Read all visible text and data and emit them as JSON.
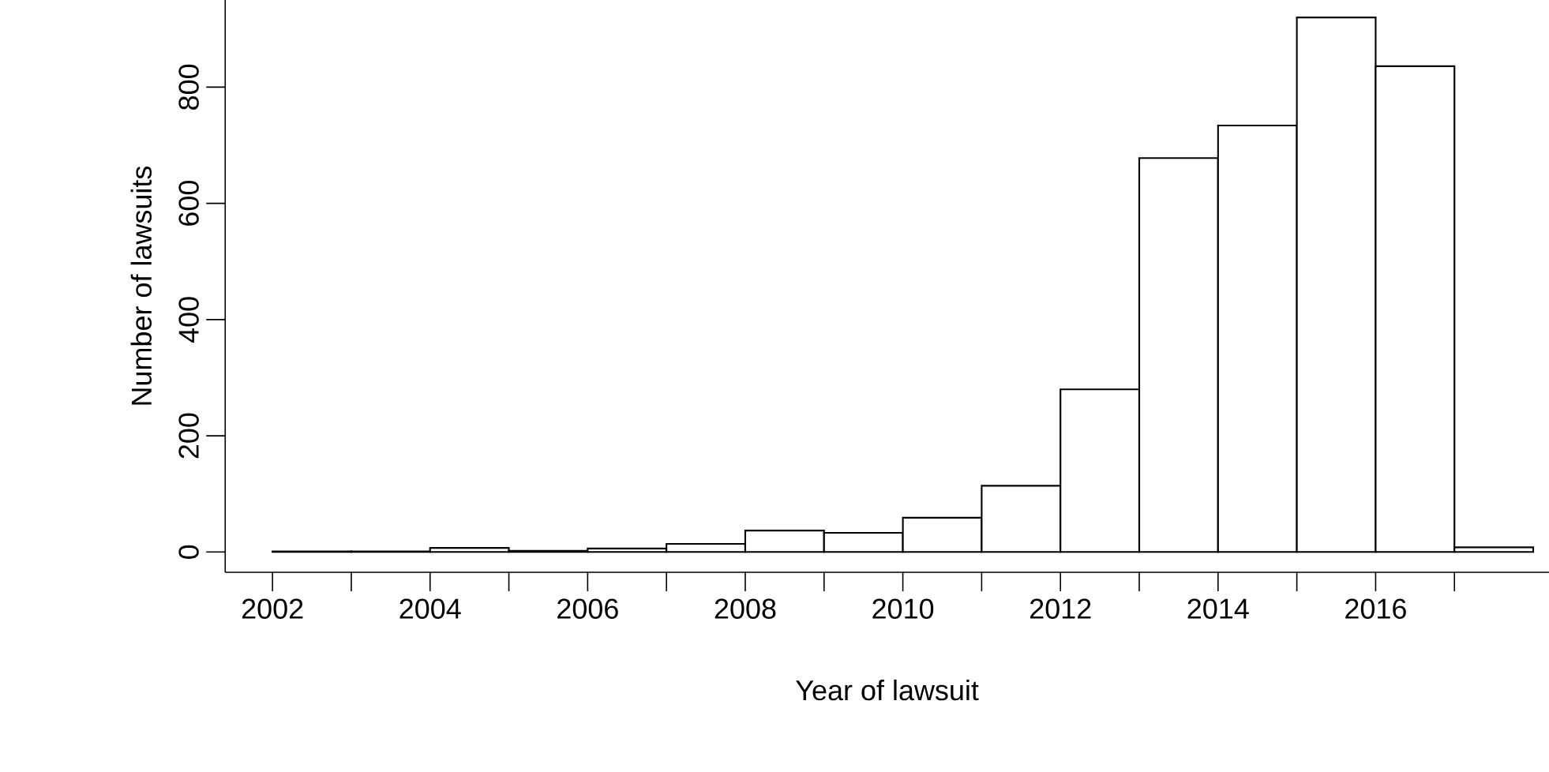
{
  "chart_data": {
    "type": "histogram",
    "xlabel": "Year of lawsuit",
    "ylabel": "Number of lawsuits",
    "bins": [
      2002,
      2003,
      2004,
      2005,
      2006,
      2007,
      2008,
      2009,
      2010,
      2011,
      2012,
      2013,
      2014,
      2015,
      2016,
      2017,
      2018
    ],
    "values": [
      1,
      1,
      7,
      2,
      6,
      14,
      37,
      33,
      59,
      114,
      280,
      678,
      734,
      920,
      836,
      8
    ],
    "color": "#ffffff",
    "xlim": [
      2001.4,
      2018.2
    ],
    "ylim": [
      -35,
      950
    ],
    "xticks": [
      2002,
      {
        "value": 2003,
        "label": null
      },
      2004,
      {
        "value": 2005,
        "label": null
      },
      2006,
      {
        "value": 2007,
        "label": null
      },
      2008,
      {
        "value": 2009,
        "label": null
      },
      2010,
      {
        "value": 2011,
        "label": null
      },
      2012,
      {
        "value": 2013,
        "label": null
      },
      2014,
      {
        "value": 2015,
        "label": null
      },
      2016,
      {
        "value": 2017,
        "label": null
      }
    ],
    "yticks": [
      0,
      200,
      400,
      600,
      800
    ],
    "grid": false
  }
}
